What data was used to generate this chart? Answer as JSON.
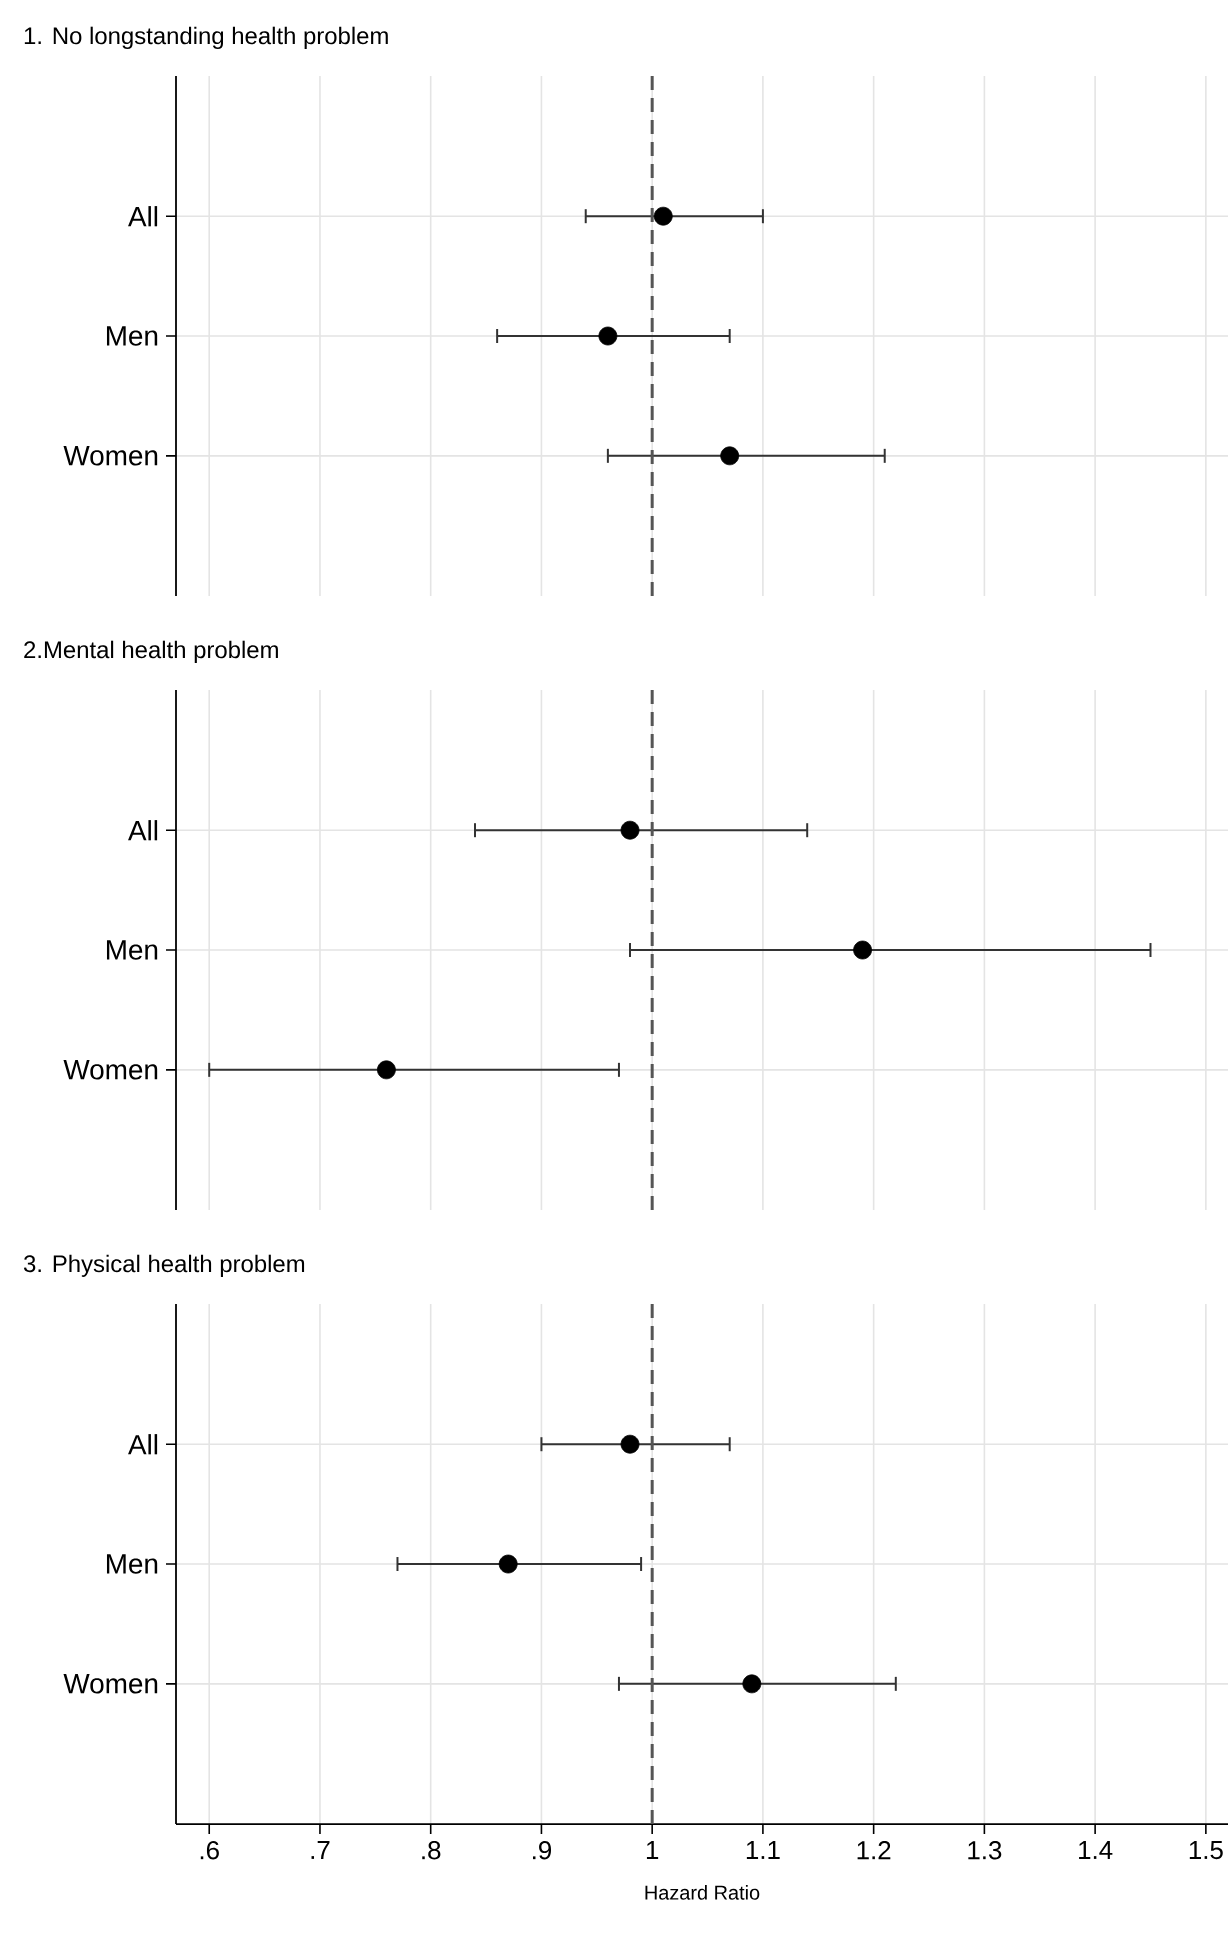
{
  "chart_data": [
    {
      "type": "scatter",
      "orientation": "horizontal",
      "title": "1. No longstanding health problem",
      "categories": [
        "All",
        "Men",
        "Women"
      ],
      "values": [
        1.01,
        0.96,
        1.07
      ],
      "errors": [
        [
          0.94,
          1.1
        ],
        [
          0.86,
          1.07
        ],
        [
          0.96,
          1.21
        ]
      ],
      "color": "#000000",
      "xlim": [
        0.57,
        1.52
      ],
      "xticks": [
        0.6,
        0.7,
        0.8,
        0.9,
        1,
        1.1,
        1.2,
        1.3,
        1.4,
        1.5
      ],
      "tick_labels": "y",
      "grid": true,
      "ref_lines": [
        {
          "axis": "x",
          "value": 1,
          "color": "#555555",
          "line_style": "dashed"
        }
      ]
    },
    {
      "type": "scatter",
      "orientation": "horizontal",
      "title": "2.Mental health problem",
      "categories": [
        "All",
        "Men",
        "Women"
      ],
      "values": [
        0.98,
        1.19,
        0.76
      ],
      "errors": [
        [
          0.84,
          1.14
        ],
        [
          0.98,
          1.45
        ],
        [
          0.6,
          0.97
        ]
      ],
      "color": "#000000",
      "xlim": [
        0.57,
        1.52
      ],
      "xticks": [
        0.6,
        0.7,
        0.8,
        0.9,
        1,
        1.1,
        1.2,
        1.3,
        1.4,
        1.5
      ],
      "tick_labels": "y",
      "grid": true,
      "ref_lines": [
        {
          "axis": "x",
          "value": 1,
          "color": "#555555",
          "line_style": "dashed"
        }
      ]
    },
    {
      "type": "scatter",
      "orientation": "horizontal",
      "title": "3. Physical health problem",
      "xlabel": "Hazard Ratio",
      "categories": [
        "All",
        "Men",
        "Women"
      ],
      "values": [
        0.98,
        0.87,
        1.09
      ],
      "errors": [
        [
          0.9,
          1.07
        ],
        [
          0.77,
          0.99
        ],
        [
          0.97,
          1.22
        ]
      ],
      "color": "#000000",
      "xlim": [
        0.57,
        1.52
      ],
      "xticks": [
        {
          "value": 0.6,
          "label": ".6"
        },
        {
          "value": 0.7,
          "label": ".7"
        },
        {
          "value": 0.8,
          "label": ".8"
        },
        {
          "value": 0.9,
          "label": ".9"
        },
        1,
        1.1,
        1.2,
        1.3,
        1.4,
        1.5
      ],
      "grid": true,
      "ref_lines": [
        {
          "axis": "x",
          "value": 1,
          "color": "#555555",
          "line_style": "dashed"
        }
      ]
    }
  ]
}
